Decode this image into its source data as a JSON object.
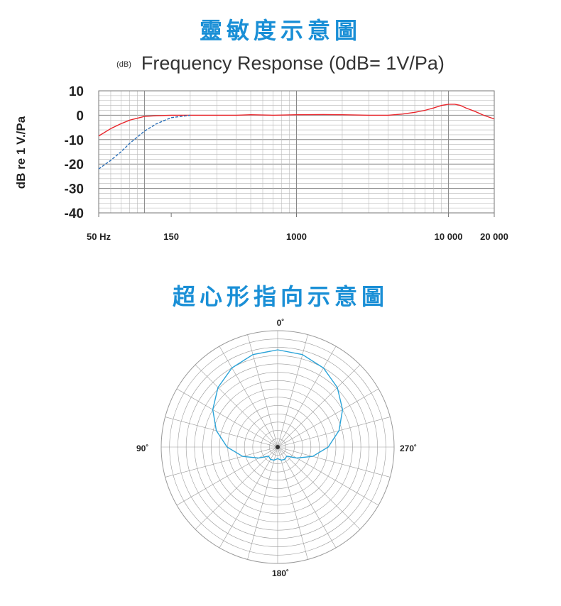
{
  "titles": {
    "frequency": "靈敏度示意圖",
    "polar": "超心形指向示意圖"
  },
  "colors": {
    "title": "#1a8fd6",
    "response_curve": "#e8252b",
    "lowcut_curve": "#2a6fb8",
    "polar_curve": "#2aa3d8",
    "grid": "#b8b8b8"
  },
  "chart_data": [
    {
      "type": "line",
      "title": "Frequency Response  (0dB= 1V/Pa)",
      "unit_label": "(dB)",
      "ylabel": "dB re 1 V./Pa",
      "xscale": "log",
      "xlim": [
        50,
        20000
      ],
      "ylim": [
        -40,
        10
      ],
      "yticks": [
        10,
        0,
        -10,
        -20,
        -30,
        -40
      ],
      "xticks": [
        {
          "value": 50,
          "label": "50 Hz"
        },
        {
          "value": 150,
          "label": "150"
        },
        {
          "value": 1000,
          "label": "1000"
        },
        {
          "value": 10000,
          "label": "10 000"
        },
        {
          "value": 20000,
          "label": "20 000"
        }
      ],
      "grid": true,
      "series": [
        {
          "style": "solid",
          "color": "red",
          "x": [
            50,
            60,
            70,
            80,
            100,
            120,
            150,
            200,
            300,
            400,
            500,
            700,
            1000,
            1500,
            2000,
            3000,
            4000,
            5000,
            6000,
            7000,
            8000,
            9000,
            10000,
            11000,
            12000,
            13000,
            15000,
            17000,
            20000
          ],
          "y": [
            -8.5,
            -5.5,
            -3.5,
            -2,
            -0.5,
            -0.2,
            0,
            0,
            0,
            0,
            0.2,
            0,
            0.2,
            0.3,
            0.2,
            0,
            0,
            0.5,
            1.2,
            2,
            3,
            4,
            4.5,
            4.5,
            4,
            3,
            1.5,
            0,
            -1.5
          ]
        },
        {
          "style": "dashed",
          "color": "blue",
          "x": [
            50,
            60,
            70,
            80,
            100,
            120,
            150,
            200
          ],
          "y": [
            -22,
            -18.5,
            -15,
            -11.5,
            -6.5,
            -3.5,
            -1,
            0
          ]
        }
      ]
    },
    {
      "type": "polar",
      "pattern": "supercardioid",
      "angle_labels": [
        "0˚",
        "90˚",
        "180˚",
        "270˚"
      ],
      "angles_deg": [
        0,
        15,
        30,
        45,
        60,
        75,
        90,
        105,
        120,
        135,
        150,
        165,
        180
      ],
      "radius": [
        1.0,
        0.985,
        0.94,
        0.867,
        0.77,
        0.653,
        0.52,
        0.372,
        0.225,
        0.132,
        0.147,
        0.139,
        0.12
      ]
    }
  ]
}
